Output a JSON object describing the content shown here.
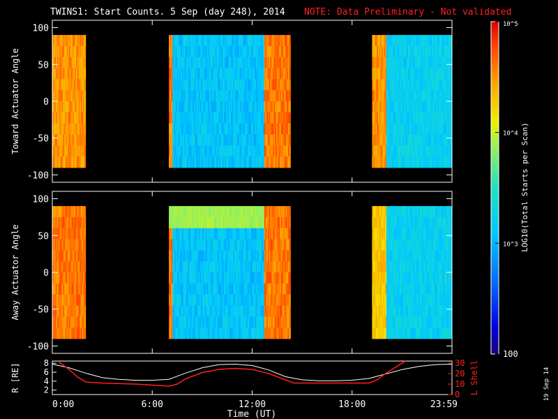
{
  "title": {
    "main": "TWINS1: Start Counts.  5 Sep (day 248), 2014",
    "note": "NOTE: Data Preliminary - Not validated"
  },
  "side_date": "19 Sep 14",
  "colorbar": {
    "label": "LOG10(Total Starts per Scan)",
    "ticks": [
      "10^5",
      "10^4",
      "10^3",
      "100"
    ],
    "scale": "log",
    "range": [
      100,
      100000
    ]
  },
  "colors": {
    "line_white": "#ffffff",
    "line_red": "#ff2020",
    "background": "#000000"
  },
  "chart_data": [
    {
      "type": "heatmap",
      "ylabel": "Toward Actuator Angle",
      "x_tick_labels": [
        "0:00",
        "6:00",
        "12:00",
        "18:00",
        "23:59"
      ],
      "y_tick_labels": [
        "100",
        "50",
        "0",
        "-50",
        "-100"
      ],
      "xlim_hours": [
        0,
        24
      ],
      "ylim": [
        -110,
        110
      ],
      "angle_range": [
        -90,
        90
      ],
      "data_intervals_hours": [
        [
          0,
          2
        ],
        [
          7,
          14.3
        ],
        [
          19.2,
          24
        ]
      ],
      "approx_log10_counts": {
        "interval_1": 4.5,
        "interval_2_edges": 4.6,
        "interval_2_middle": 3.1,
        "interval_3_edge": 4.5,
        "interval_3_middle": 3.2
      }
    },
    {
      "type": "heatmap",
      "ylabel": "Away Actuator Angle",
      "x_tick_labels": [
        "0:00",
        "6:00",
        "12:00",
        "18:00",
        "23:59"
      ],
      "y_tick_labels": [
        "100",
        "50",
        "0",
        "-50",
        "-100"
      ],
      "xlim_hours": [
        0,
        24
      ],
      "ylim": [
        -110,
        110
      ],
      "angle_range": [
        -90,
        90
      ],
      "data_intervals_hours": [
        [
          0,
          2
        ],
        [
          7,
          14.3
        ],
        [
          19.2,
          24
        ]
      ],
      "approx_log10_counts": {
        "interval_1": 4.6,
        "interval_2_band_70deg": 3.9,
        "interval_2_middle": 3.1,
        "interval_3_middle": 3.2
      }
    },
    {
      "type": "line",
      "xlabel": "Time (UT)",
      "ylabel_left": "R [RE]",
      "ylabel_right": "L Shell",
      "x_tick_labels": [
        "0:00",
        "6:00",
        "12:00",
        "18:00",
        "23:59"
      ],
      "y_left_ticks": [
        "8",
        "6",
        "4",
        "2"
      ],
      "y_right_ticks": [
        "30",
        "20",
        "10",
        "0"
      ],
      "ylim_left": [
        1,
        8.5
      ],
      "ylim_right": [
        0,
        32
      ],
      "series": [
        {
          "name": "R [RE]",
          "axis": "left",
          "x": [
            0,
            1,
            2,
            3,
            4,
            5,
            6,
            7,
            8,
            9,
            10,
            11,
            12,
            13,
            14,
            15,
            16,
            17,
            18,
            19,
            20,
            21,
            22,
            23,
            24
          ],
          "y": [
            7.8,
            7.0,
            5.8,
            4.8,
            4.4,
            4.2,
            4.2,
            4.4,
            5.8,
            7.0,
            7.7,
            7.8,
            7.5,
            6.5,
            5.0,
            4.3,
            4.1,
            4.1,
            4.2,
            4.6,
            5.6,
            6.6,
            7.3,
            7.7,
            7.8
          ]
        },
        {
          "name": "L Shell",
          "axis": "right",
          "x": [
            0.4,
            1,
            1.5,
            2,
            3,
            5,
            7,
            7.5,
            8,
            9,
            10,
            11,
            12,
            13,
            14,
            14.5,
            19,
            19.5,
            20,
            21,
            21.2
          ],
          "y": [
            31,
            24,
            17,
            12,
            11,
            10,
            8,
            10,
            15,
            21,
            24,
            25,
            24,
            20,
            14,
            11,
            11,
            14,
            20,
            30,
            32
          ]
        }
      ]
    }
  ]
}
